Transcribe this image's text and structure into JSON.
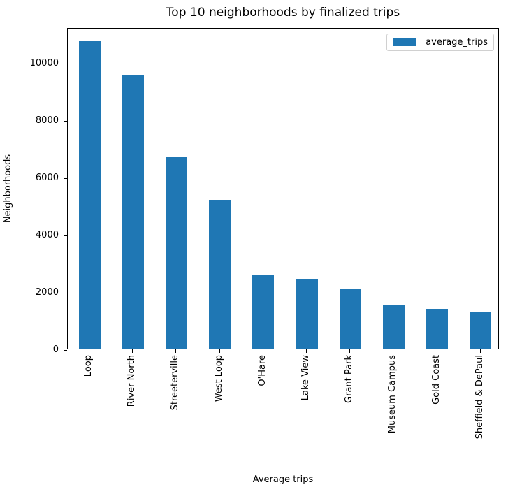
{
  "chart_data": {
    "type": "bar",
    "title": "Top 10 neighborhoods by finalized trips",
    "xlabel": "Average trips",
    "ylabel": "Neighborhoods",
    "categories": [
      "Loop",
      "River North",
      "Streeterville",
      "West Loop",
      "O'Hare",
      "Lake View",
      "Grant Park",
      "Museum Campus",
      "Gold Coast",
      "Sheffield & DePaul"
    ],
    "series": [
      {
        "name": "average_trips",
        "color": "#1f77b4",
        "values": [
          10760,
          9560,
          6700,
          5200,
          2580,
          2450,
          2090,
          1550,
          1390,
          1260
        ]
      }
    ],
    "ylim": [
      0,
      11250
    ],
    "yticks": [
      "0",
      "2000",
      "4000",
      "6000",
      "8000",
      "10000"
    ],
    "legend_position": "upper right",
    "grid": false
  }
}
